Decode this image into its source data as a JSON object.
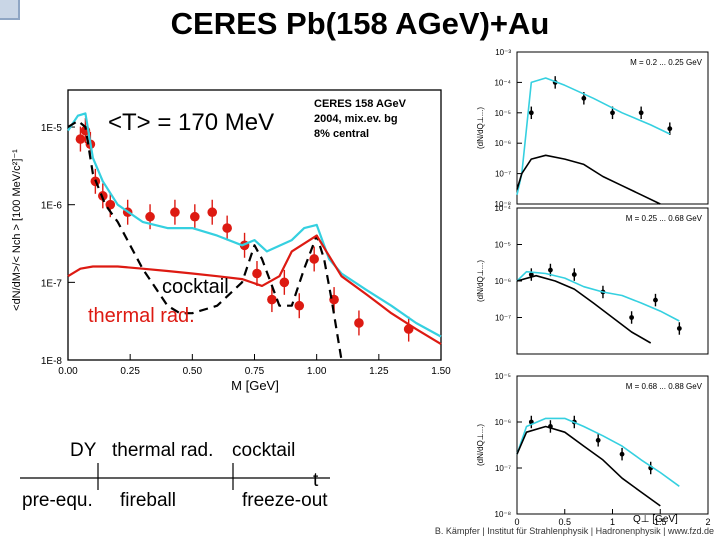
{
  "slide": {
    "title": "CERES Pb(158 AGeV)+Au",
    "footer": "B. Kämpfer | Institut für Strahlenphysik | Hadronenphysik | www.fzd.de"
  },
  "timeline": {
    "row1": [
      "DY",
      "thermal rad.",
      "cocktail"
    ],
    "t_label": "t",
    "row2": [
      "pre-equ.",
      "fireball",
      "freeze-out"
    ]
  },
  "colors": {
    "cyan": "#35d0e0",
    "red": "#dd1a12",
    "black": "#000000"
  },
  "chart_data": [
    {
      "type": "scatter",
      "xlabel": "M [GeV]",
      "ylabel": "<dN/dM>/< Nch > [100 MeV/c²]⁻¹",
      "xlim": [
        0,
        1.5
      ],
      "ylim": [
        1e-08,
        3e-05
      ],
      "yscale": "log",
      "x_ticks": [
        "0.00",
        "0.25",
        "0.50",
        "0.75",
        "1.00",
        "1.25",
        "1.50"
      ],
      "y_ticks": [
        "1E-5",
        "1E-6",
        "1E-7",
        "1E-8"
      ],
      "annotations": {
        "temperature": "<T> = 170 MeV",
        "experiment": [
          "CERES 158 AGeV",
          "2004, mix.ev. bg",
          "8% central"
        ],
        "cocktail_label": "cocktail",
        "thermal_label": "thermal rad."
      },
      "series": [
        {
          "kind": "points",
          "color": "red",
          "x": [
            0.05,
            0.07,
            0.09,
            0.11,
            0.14,
            0.17,
            0.24,
            0.33,
            0.43,
            0.51,
            0.58,
            0.64,
            0.71,
            0.76,
            0.82,
            0.87,
            0.93,
            0.99,
            1.07,
            1.17,
            1.37
          ],
          "y": [
            7e-06,
            9e-06,
            6e-06,
            2e-06,
            1.3e-06,
            1e-06,
            8e-07,
            7e-07,
            8e-07,
            7e-07,
            8e-07,
            5e-07,
            3e-07,
            1.3e-07,
            6e-08,
            1e-07,
            5e-08,
            2e-07,
            6e-08,
            3e-08,
            2.5e-08
          ]
        },
        {
          "kind": "line",
          "color": "cyan",
          "x": [
            0.0,
            0.04,
            0.07,
            0.1,
            0.14,
            0.2,
            0.3,
            0.4,
            0.5,
            0.6,
            0.7,
            0.75,
            0.8,
            0.9,
            0.95,
            1.0,
            1.05,
            1.1,
            1.2,
            1.3,
            1.4,
            1.5
          ],
          "y": [
            9e-06,
            1.4e-05,
            1.5e-05,
            4e-06,
            2e-06,
            1e-06,
            6e-07,
            5e-07,
            5e-07,
            4e-07,
            3e-07,
            3.5e-07,
            2.5e-07,
            3.5e-07,
            5e-07,
            5.5e-07,
            2e-07,
            1.3e-07,
            8e-08,
            5e-08,
            3e-08,
            2e-08
          ]
        },
        {
          "kind": "dashed",
          "color": "black",
          "x": [
            0.0,
            0.04,
            0.07,
            0.1,
            0.15,
            0.2,
            0.3,
            0.4,
            0.45,
            0.5,
            0.6,
            0.7,
            0.75,
            0.78,
            0.85,
            0.9,
            0.95,
            1.0,
            1.03,
            1.06,
            1.1
          ],
          "y": [
            1e-05,
            1.2e-05,
            1e-05,
            2.5e-06,
            1e-06,
            6e-07,
            1.5e-07,
            5e-08,
            4e-08,
            4e-08,
            5e-08,
            1e-07,
            3e-07,
            2e-07,
            5e-08,
            5e-08,
            1.5e-07,
            4e-07,
            2e-07,
            6e-08,
            1e-08
          ]
        },
        {
          "kind": "line",
          "color": "red",
          "x": [
            0.0,
            0.05,
            0.1,
            0.2,
            0.3,
            0.4,
            0.5,
            0.6,
            0.7,
            0.78,
            0.85,
            0.9,
            1.0,
            1.1,
            1.2,
            1.3,
            1.4,
            1.5
          ],
          "y": [
            1.2e-07,
            1.5e-07,
            1.6e-07,
            1.6e-07,
            1.5e-07,
            1.4e-07,
            1.3e-07,
            1.2e-07,
            1.1e-07,
            9e-08,
            1.2e-07,
            2.5e-07,
            4e-07,
            1.2e-07,
            7e-08,
            4e-08,
            2.5e-08,
            1.6e-08
          ]
        }
      ]
    },
    {
      "type": "scatter",
      "xlabel": "",
      "ylabel": "(dN/dQ⊥...)",
      "legend": "M = 0.2 ... 0.25 GeV",
      "xlim": [
        0,
        2
      ],
      "ylim": [
        1e-08,
        0.001
      ],
      "yscale": "log",
      "y_ticks": [
        "10⁻³",
        "10⁻⁴",
        "10⁻⁵",
        "10⁻⁶",
        "10⁻⁷",
        "10⁻⁸"
      ],
      "series": [
        {
          "kind": "points",
          "color": "black",
          "x": [
            0.15,
            0.4,
            0.7,
            1.0,
            1.3,
            1.6
          ],
          "y": [
            1e-05,
            0.0001,
            3e-05,
            1e-05,
            1e-05,
            3e-06
          ]
        },
        {
          "kind": "line",
          "color": "cyan",
          "x": [
            0.0,
            0.05,
            0.15,
            0.3,
            0.5,
            0.8,
            1.1,
            1.4,
            1.6
          ],
          "y": [
            2e-08,
            1e-07,
            0.0001,
            0.00014,
            8e-05,
            3e-05,
            1e-05,
            4e-06,
            2e-06
          ]
        },
        {
          "kind": "line",
          "color": "black",
          "x": [
            0.0,
            0.05,
            0.15,
            0.3,
            0.5,
            0.7,
            0.9,
            1.1,
            1.3,
            1.5
          ],
          "y": [
            3e-08,
            1e-07,
            3e-07,
            4e-07,
            3e-07,
            2e-07,
            8e-08,
            4e-08,
            2e-08,
            1e-08
          ]
        }
      ]
    },
    {
      "type": "scatter",
      "xlabel": "",
      "ylabel": "(dN/dQ⊥...)",
      "legend": "M = 0.25 ... 0.68 GeV",
      "xlim": [
        0,
        2
      ],
      "ylim": [
        1e-08,
        0.0001
      ],
      "yscale": "log",
      "y_ticks": [
        "10⁻⁴",
        "10⁻⁵",
        "10⁻⁶",
        "10⁻⁷"
      ],
      "series": [
        {
          "kind": "points",
          "color": "black",
          "x": [
            0.15,
            0.35,
            0.6,
            0.9,
            1.2,
            1.45,
            1.7
          ],
          "y": [
            1.5e-06,
            2e-06,
            1.5e-06,
            5e-07,
            1e-07,
            3e-07,
            5e-08
          ]
        },
        {
          "kind": "line",
          "color": "cyan",
          "x": [
            0.0,
            0.1,
            0.3,
            0.5,
            0.7,
            0.9,
            1.1,
            1.3,
            1.5,
            1.7
          ],
          "y": [
            1e-06,
            1.8e-06,
            1.6e-06,
            1.2e-06,
            7e-07,
            5e-07,
            4e-07,
            2.5e-07,
            1.5e-07,
            8e-08
          ]
        },
        {
          "kind": "line",
          "color": "black",
          "x": [
            0.0,
            0.2,
            0.4,
            0.6,
            0.8,
            1.0,
            1.2,
            1.4
          ],
          "y": [
            1e-06,
            1.4e-06,
            1e-06,
            6e-07,
            2.5e-07,
            1e-07,
            4e-08,
            2e-08
          ]
        }
      ]
    },
    {
      "type": "scatter",
      "xlabel": "Q⊥ [GeV]",
      "ylabel": "(dN/dQ⊥...)",
      "legend": "M = 0.68 ... 0.88 GeV",
      "xlim": [
        0,
        2
      ],
      "ylim": [
        1e-08,
        1e-05
      ],
      "yscale": "log",
      "x_ticks": [
        "0",
        "0.5",
        "1",
        "1.5",
        "2"
      ],
      "y_ticks": [
        "10⁻⁵",
        "10⁻⁶",
        "10⁻⁷",
        "10⁻⁸"
      ],
      "series": [
        {
          "kind": "points",
          "color": "black",
          "x": [
            0.15,
            0.35,
            0.6,
            0.85,
            1.1,
            1.4
          ],
          "y": [
            1e-06,
            8e-07,
            1e-06,
            4e-07,
            2e-07,
            1e-07
          ]
        },
        {
          "kind": "line",
          "color": "cyan",
          "x": [
            0.0,
            0.1,
            0.3,
            0.5,
            0.7,
            0.9,
            1.1,
            1.3,
            1.5,
            1.7
          ],
          "y": [
            2e-07,
            8e-07,
            1.2e-06,
            1.2e-06,
            8e-07,
            5e-07,
            3e-07,
            1.5e-07,
            8e-08,
            4e-08
          ]
        },
        {
          "kind": "line",
          "color": "black",
          "x": [
            0.0,
            0.1,
            0.3,
            0.5,
            0.7,
            0.9,
            1.1,
            1.3,
            1.5
          ],
          "y": [
            2e-07,
            6e-07,
            8e-07,
            6e-07,
            3e-07,
            1.5e-07,
            6e-08,
            3e-08,
            1.5e-08
          ]
        }
      ]
    }
  ]
}
